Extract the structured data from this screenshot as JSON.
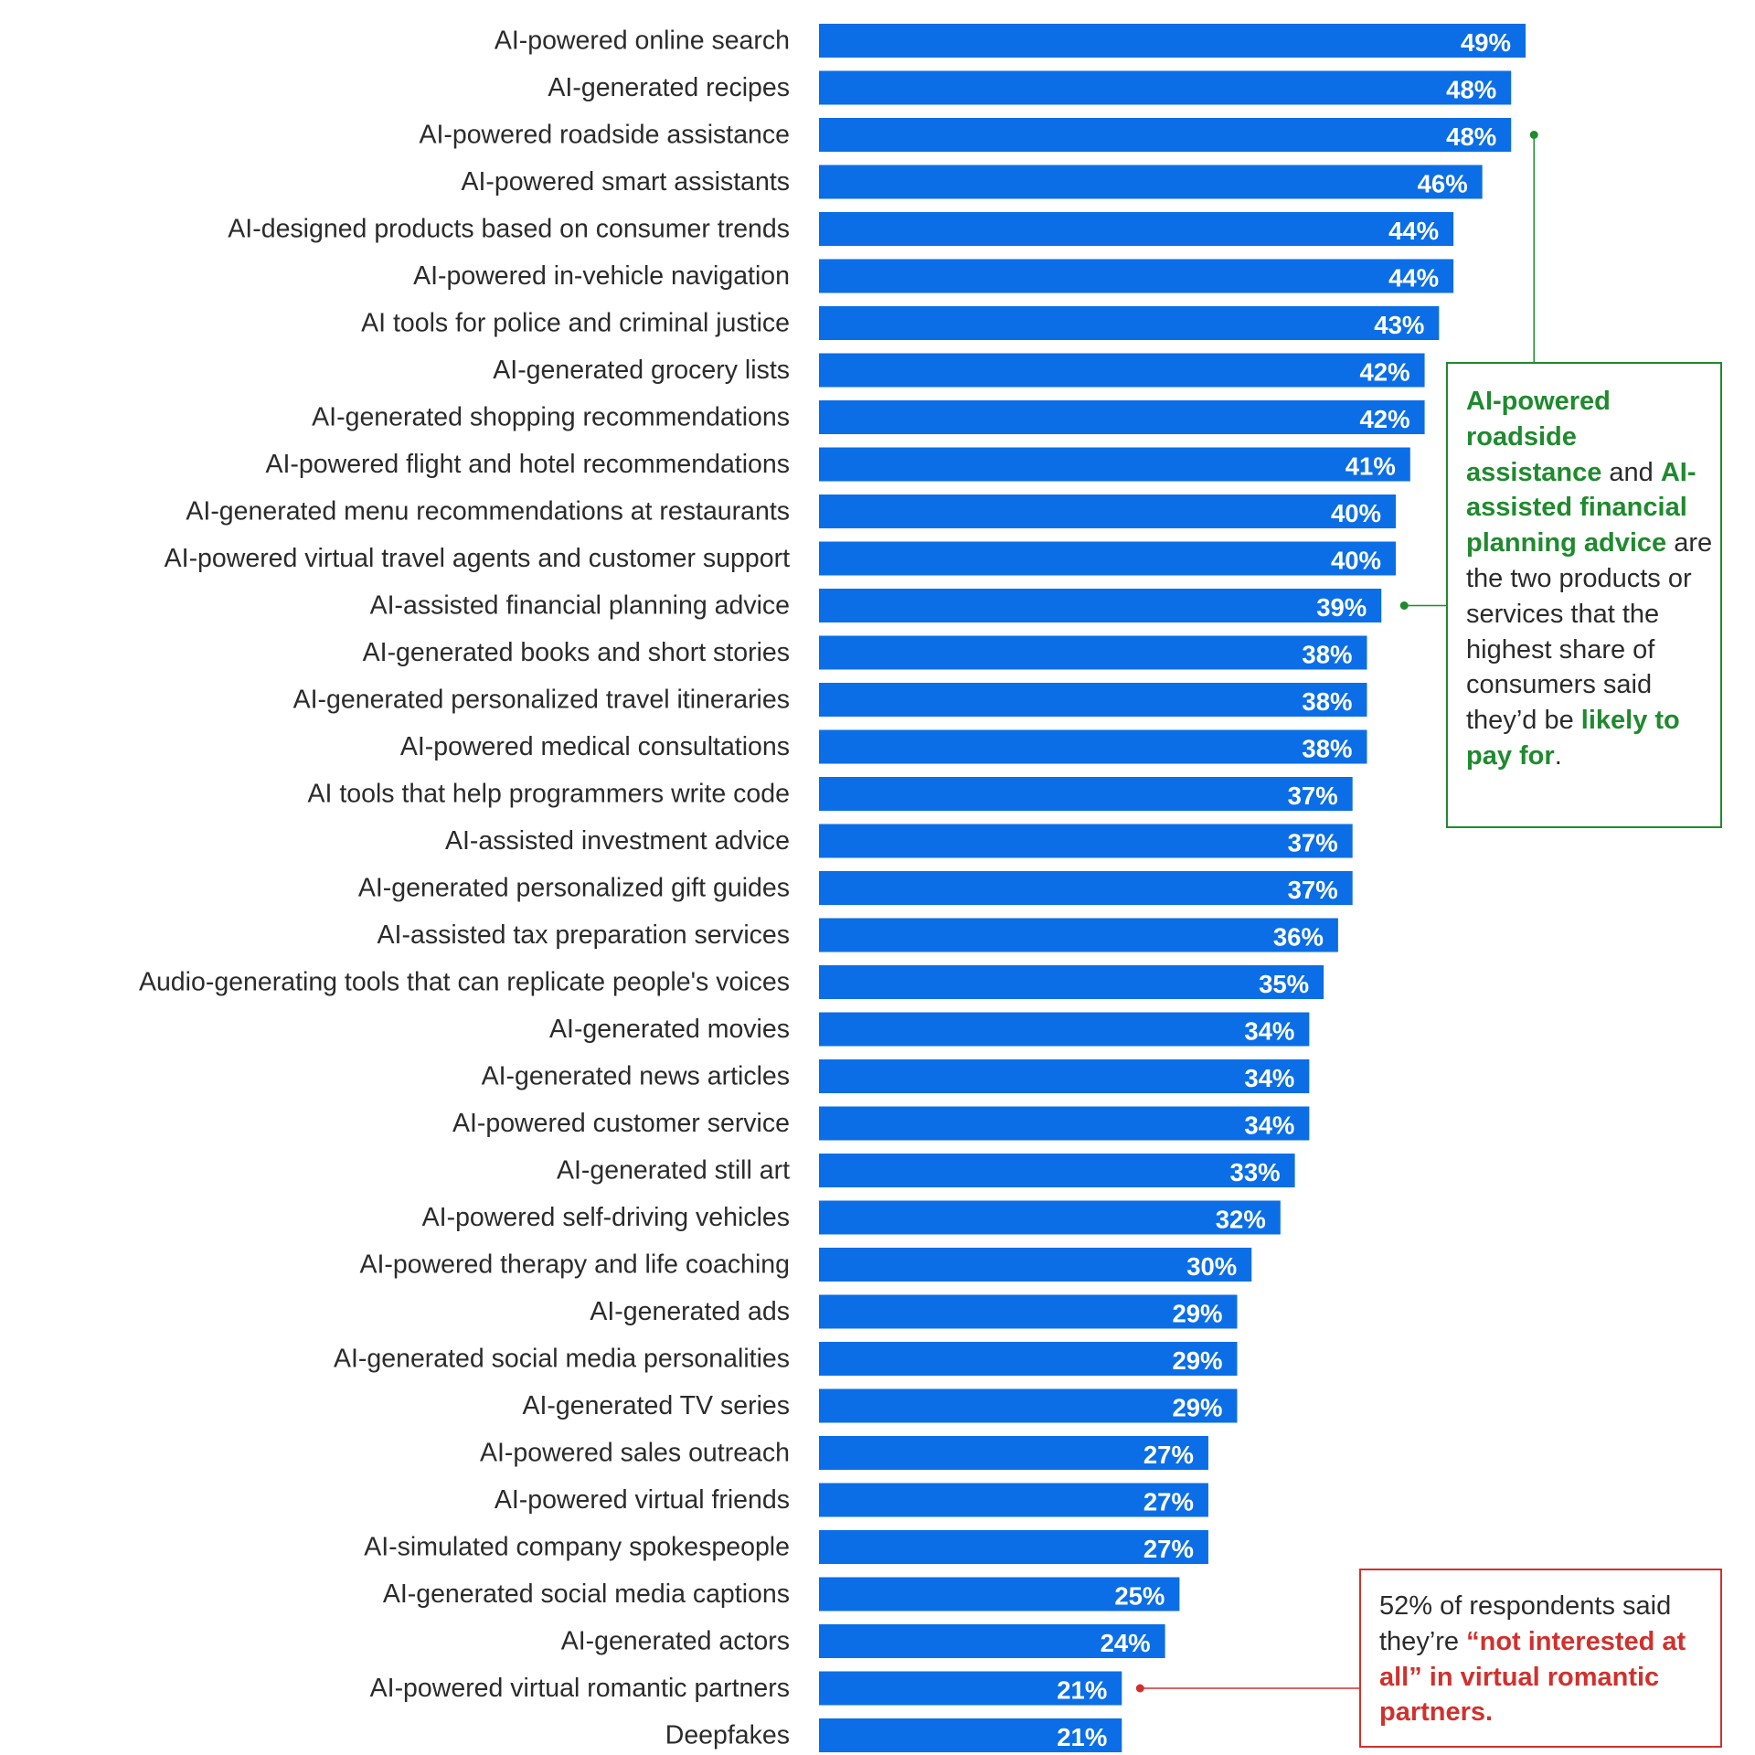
{
  "chart_data": {
    "type": "bar",
    "orientation": "horizontal",
    "bar_color": "#0b6ee6",
    "xlim": [
      0,
      49
    ],
    "categories": [
      "AI-powered online search",
      "AI-generated recipes",
      "AI-powered roadside assistance",
      "AI-powered smart assistants",
      "AI-designed products based on consumer trends",
      "AI-powered in-vehicle navigation",
      "AI tools for police and criminal justice",
      "AI-generated grocery lists",
      "AI-generated shopping recommendations",
      "AI-powered flight and hotel recommendations",
      "AI-generated menu recommendations at restaurants",
      "AI-powered virtual travel agents and customer support",
      "AI-assisted financial planning advice",
      "AI-generated books and short stories",
      "AI-generated personalized travel itineraries",
      "AI-powered medical consultations",
      "AI tools that help programmers write code",
      "AI-assisted investment advice",
      "AI-generated personalized gift guides",
      "AI-assisted tax preparation services",
      "Audio-generating tools that can replicate people's voices",
      "AI-generated movies",
      "AI-generated news articles",
      "AI-powered customer service",
      "AI-generated still art",
      "AI-powered self-driving vehicles",
      "AI-powered therapy and life coaching",
      "AI-generated ads",
      "AI-generated social media personalities",
      "AI-generated TV series",
      "AI-powered sales outreach",
      "AI-powered virtual friends",
      "AI-simulated company spokespeople",
      "AI-generated social media captions",
      "AI-generated actors",
      "AI-powered virtual romantic partners",
      "Deepfakes"
    ],
    "values": [
      49,
      48,
      48,
      46,
      44,
      44,
      43,
      42,
      42,
      41,
      40,
      40,
      39,
      38,
      38,
      38,
      37,
      37,
      37,
      36,
      35,
      34,
      34,
      34,
      33,
      32,
      30,
      29,
      29,
      29,
      27,
      27,
      27,
      25,
      24,
      21,
      21
    ],
    "value_suffix": "%",
    "annotations": [
      {
        "target_index": 2,
        "secondary_target_index": 12,
        "color": "#1f8a2e",
        "parts": [
          {
            "text": "AI-powered roadside assistance",
            "highlight": true
          },
          {
            "text": " and ",
            "highlight": false
          },
          {
            "text": "AI-assisted financial planning advice",
            "highlight": true
          },
          {
            "text": " are the two products or services that the highest share of consumers said they’d be ",
            "highlight": false
          },
          {
            "text": "likely to pay for",
            "highlight": true
          },
          {
            "text": ".",
            "highlight": false
          }
        ]
      },
      {
        "target_index": 35,
        "color": "#d0312d",
        "parts": [
          {
            "text": "52% of respondents said they’re ",
            "highlight": false
          },
          {
            "text": "“not interested at all” in virtual romantic partners.",
            "highlight": true
          }
        ]
      }
    ]
  }
}
